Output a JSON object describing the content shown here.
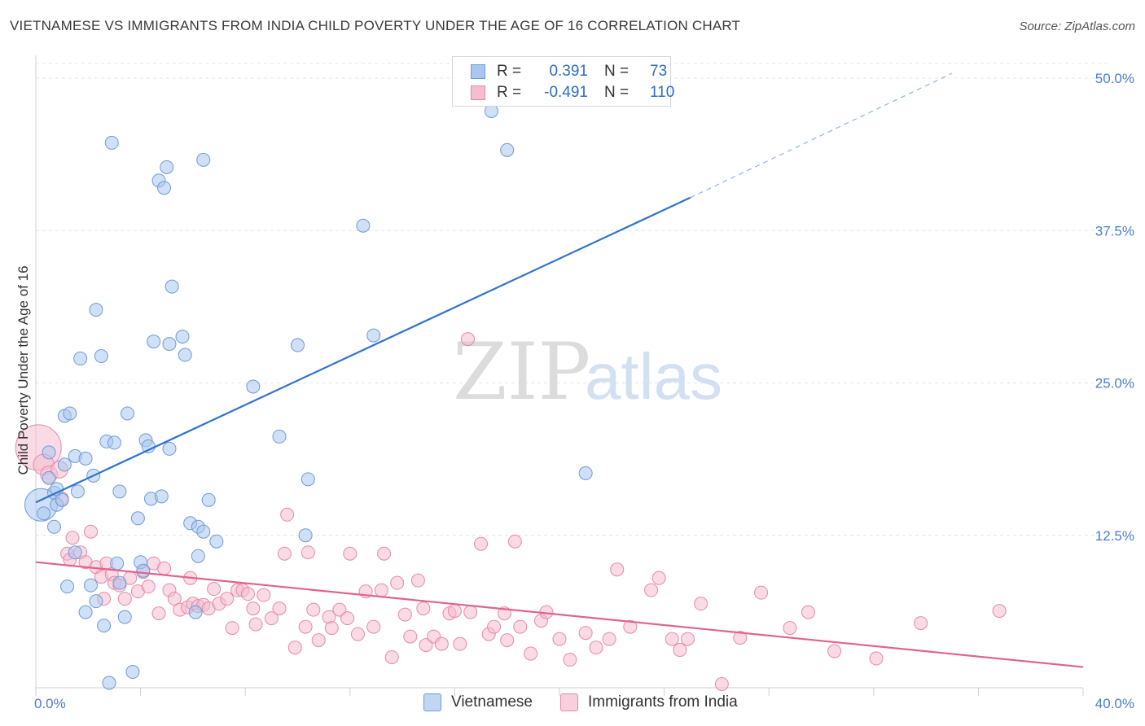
{
  "title": "VIETNAMESE VS IMMIGRANTS FROM INDIA CHILD POVERTY UNDER THE AGE OF 16 CORRELATION CHART",
  "source": "Source: ZipAtlas.com",
  "watermark": {
    "zip": "ZIP",
    "atlas": "atlas"
  },
  "legend": {
    "r_label": "R =",
    "n_label": "N =",
    "items": [
      {
        "r": "0.391",
        "n": "73",
        "color": "#a9c6ee",
        "border": "#6e9bd6"
      },
      {
        "r": "-0.491",
        "n": "110",
        "color": "#f6bcd0",
        "border": "#e58aaa"
      }
    ]
  },
  "bottom_legend": [
    "Vietnamese",
    "Immigrants from India"
  ],
  "chart_data": {
    "type": "scatter",
    "title": "VIETNAMESE VS IMMIGRANTS FROM INDIA CHILD POVERTY UNDER THE AGE OF 16 CORRELATION CHART",
    "xlabel": "",
    "ylabel": "Child Poverty Under the Age of 16",
    "xlim": [
      0,
      40
    ],
    "ylim": [
      0,
      50
    ],
    "x_ticks": [
      "0.0%",
      "40.0%"
    ],
    "y_ticks": [
      "12.5%",
      "25.0%",
      "37.5%",
      "50.0%"
    ],
    "grid": true,
    "series": [
      {
        "name": "Vietnamese",
        "color": "#6e9bd6",
        "fill": "#a9c6ee",
        "trend": {
          "x0": 0,
          "y0": 15.2,
          "x1": 25,
          "y1": 40.2,
          "dash_to_x": 35,
          "dash_to_y": 50.4,
          "color": "#2f73cf"
        },
        "points": [
          [
            0.2,
            15.0,
            2.5
          ],
          [
            0.3,
            14.3,
            1
          ],
          [
            0.5,
            17.2,
            1
          ],
          [
            0.5,
            19.3,
            1
          ],
          [
            0.7,
            16.0,
            1
          ],
          [
            0.8,
            16.3,
            1
          ],
          [
            0.8,
            15.0,
            1
          ],
          [
            0.7,
            13.2,
            1
          ],
          [
            1.0,
            15.4,
            1
          ],
          [
            1.1,
            18.3,
            1
          ],
          [
            1.1,
            22.3,
            1
          ],
          [
            1.3,
            22.5,
            1
          ],
          [
            1.5,
            19.0,
            1
          ],
          [
            1.5,
            11.1,
            1
          ],
          [
            1.2,
            8.3,
            1
          ],
          [
            1.6,
            16.1,
            1
          ],
          [
            1.7,
            27.0,
            1
          ],
          [
            1.9,
            18.8,
            1
          ],
          [
            1.9,
            6.2,
            1
          ],
          [
            2.1,
            8.4,
            1
          ],
          [
            2.2,
            17.4,
            1
          ],
          [
            2.3,
            7.1,
            1
          ],
          [
            2.3,
            31.0,
            1
          ],
          [
            2.5,
            27.2,
            1
          ],
          [
            2.6,
            5.1,
            1
          ],
          [
            2.7,
            20.2,
            1
          ],
          [
            2.8,
            0.4,
            1
          ],
          [
            2.9,
            44.7,
            1
          ],
          [
            3.0,
            20.1,
            1
          ],
          [
            3.2,
            16.1,
            1
          ],
          [
            3.1,
            10.2,
            1
          ],
          [
            3.2,
            8.6,
            1
          ],
          [
            3.4,
            5.8,
            1
          ],
          [
            3.5,
            22.5,
            1
          ],
          [
            3.7,
            1.3,
            1
          ],
          [
            3.9,
            13.9,
            1
          ],
          [
            4.0,
            10.3,
            1
          ],
          [
            4.1,
            9.6,
            1
          ],
          [
            4.2,
            20.3,
            1
          ],
          [
            4.3,
            19.8,
            1
          ],
          [
            4.4,
            15.5,
            1
          ],
          [
            4.5,
            28.4,
            1
          ],
          [
            4.7,
            41.6,
            1
          ],
          [
            4.8,
            15.7,
            1
          ],
          [
            4.9,
            41.0,
            1
          ],
          [
            5.0,
            42.7,
            1
          ],
          [
            5.1,
            28.2,
            1
          ],
          [
            5.1,
            19.6,
            1
          ],
          [
            5.2,
            32.9,
            1
          ],
          [
            5.6,
            28.8,
            1
          ],
          [
            5.7,
            27.3,
            1
          ],
          [
            5.9,
            13.5,
            1
          ],
          [
            6.1,
            6.2,
            1
          ],
          [
            6.2,
            10.8,
            1
          ],
          [
            6.2,
            13.2,
            1
          ],
          [
            6.4,
            12.8,
            1
          ],
          [
            6.4,
            43.3,
            1
          ],
          [
            6.6,
            15.4,
            1
          ],
          [
            6.9,
            12.0,
            1
          ],
          [
            8.3,
            24.7,
            1
          ],
          [
            9.3,
            20.6,
            1
          ],
          [
            10.0,
            28.1,
            1
          ],
          [
            10.3,
            12.5,
            1
          ],
          [
            10.4,
            17.1,
            1
          ],
          [
            12.5,
            37.9,
            1
          ],
          [
            12.9,
            28.9,
            1
          ],
          [
            17.4,
            47.3,
            1
          ],
          [
            18.0,
            44.1,
            1
          ],
          [
            21.0,
            17.6,
            1
          ]
        ]
      },
      {
        "name": "Immigrants from India",
        "color": "#e58aaa",
        "fill": "#f6bcd0",
        "trend": {
          "x0": 0,
          "y0": 10.3,
          "x1": 40,
          "y1": 1.7,
          "color": "#e0648e"
        },
        "points": [
          [
            0.1,
            19.7,
            3.5
          ],
          [
            0.3,
            18.3,
            1.6
          ],
          [
            0.5,
            17.5,
            1.3
          ],
          [
            0.9,
            17.9,
            1.3
          ],
          [
            1.0,
            15.5,
            1
          ],
          [
            1.2,
            11.0,
            1
          ],
          [
            1.3,
            10.5,
            1
          ],
          [
            1.4,
            12.3,
            1
          ],
          [
            1.7,
            11.1,
            1
          ],
          [
            1.9,
            10.3,
            1
          ],
          [
            2.1,
            12.8,
            1
          ],
          [
            2.3,
            9.9,
            1
          ],
          [
            2.5,
            9.1,
            1
          ],
          [
            2.6,
            7.3,
            1
          ],
          [
            2.7,
            10.2,
            1
          ],
          [
            2.9,
            9.3,
            1
          ],
          [
            3.0,
            8.6,
            1
          ],
          [
            3.2,
            8.4,
            1
          ],
          [
            3.4,
            7.3,
            1
          ],
          [
            3.6,
            9.0,
            1
          ],
          [
            3.9,
            7.9,
            1
          ],
          [
            4.1,
            9.5,
            1
          ],
          [
            4.3,
            8.3,
            1
          ],
          [
            4.5,
            10.2,
            1
          ],
          [
            4.7,
            6.1,
            1
          ],
          [
            4.9,
            9.8,
            1
          ],
          [
            5.1,
            8.0,
            1
          ],
          [
            5.3,
            7.3,
            1
          ],
          [
            5.5,
            6.4,
            1
          ],
          [
            5.8,
            6.6,
            1
          ],
          [
            5.9,
            9.0,
            1
          ],
          [
            6.0,
            6.9,
            1
          ],
          [
            6.2,
            6.7,
            1
          ],
          [
            6.4,
            6.8,
            1
          ],
          [
            6.6,
            6.5,
            1
          ],
          [
            6.8,
            8.1,
            1
          ],
          [
            7.0,
            6.9,
            1
          ],
          [
            7.3,
            7.3,
            1
          ],
          [
            7.5,
            4.9,
            1
          ],
          [
            7.7,
            8.0,
            1
          ],
          [
            7.9,
            8.0,
            1
          ],
          [
            8.1,
            7.7,
            1
          ],
          [
            8.3,
            6.5,
            1
          ],
          [
            8.4,
            5.2,
            1
          ],
          [
            8.7,
            7.6,
            1
          ],
          [
            9.0,
            5.7,
            1
          ],
          [
            9.3,
            6.5,
            1
          ],
          [
            9.5,
            11.0,
            1
          ],
          [
            9.6,
            14.2,
            1
          ],
          [
            9.9,
            3.3,
            1
          ],
          [
            10.3,
            5.0,
            1
          ],
          [
            10.4,
            11.1,
            1
          ],
          [
            10.6,
            6.4,
            1
          ],
          [
            10.8,
            3.9,
            1
          ],
          [
            11.2,
            5.8,
            1
          ],
          [
            11.3,
            4.9,
            1
          ],
          [
            11.6,
            6.4,
            1
          ],
          [
            11.9,
            5.7,
            1
          ],
          [
            12.0,
            11.0,
            1
          ],
          [
            12.3,
            4.4,
            1
          ],
          [
            12.6,
            7.9,
            1
          ],
          [
            12.9,
            5.0,
            1
          ],
          [
            13.2,
            8.0,
            1
          ],
          [
            13.3,
            11.0,
            1
          ],
          [
            13.6,
            2.5,
            1
          ],
          [
            13.8,
            8.6,
            1
          ],
          [
            14.1,
            6.0,
            1
          ],
          [
            14.3,
            4.2,
            1
          ],
          [
            14.6,
            8.8,
            1
          ],
          [
            14.8,
            6.5,
            1
          ],
          [
            14.9,
            3.5,
            1
          ],
          [
            15.2,
            4.2,
            1
          ],
          [
            15.5,
            3.6,
            1
          ],
          [
            15.8,
            6.1,
            1
          ],
          [
            16.0,
            6.3,
            1
          ],
          [
            16.2,
            3.6,
            1
          ],
          [
            16.5,
            28.6,
            1
          ],
          [
            16.6,
            6.2,
            1
          ],
          [
            17.0,
            11.8,
            1
          ],
          [
            17.3,
            4.4,
            1
          ],
          [
            17.5,
            5.0,
            1
          ],
          [
            17.9,
            6.1,
            1
          ],
          [
            18.0,
            3.9,
            1
          ],
          [
            18.3,
            12.0,
            1
          ],
          [
            18.5,
            5.0,
            1
          ],
          [
            18.9,
            2.8,
            1
          ],
          [
            19.3,
            5.5,
            1
          ],
          [
            19.5,
            6.2,
            1
          ],
          [
            20.0,
            4.0,
            1
          ],
          [
            20.4,
            2.3,
            1
          ],
          [
            21.0,
            4.5,
            1
          ],
          [
            21.4,
            3.3,
            1
          ],
          [
            21.9,
            4.0,
            1
          ],
          [
            22.2,
            9.7,
            1
          ],
          [
            22.7,
            5.0,
            1
          ],
          [
            23.5,
            8.0,
            1
          ],
          [
            23.8,
            9.0,
            1
          ],
          [
            24.3,
            4.0,
            1
          ],
          [
            24.6,
            3.1,
            1
          ],
          [
            24.9,
            4.0,
            1
          ],
          [
            25.4,
            6.9,
            1
          ],
          [
            26.2,
            0.3,
            1
          ],
          [
            26.9,
            4.1,
            1
          ],
          [
            27.7,
            7.8,
            1
          ],
          [
            28.8,
            4.9,
            1
          ],
          [
            29.5,
            6.2,
            1
          ],
          [
            30.5,
            3.0,
            1
          ],
          [
            32.1,
            2.4,
            1
          ],
          [
            33.8,
            5.3,
            1
          ],
          [
            36.8,
            6.3,
            1
          ]
        ]
      }
    ]
  }
}
